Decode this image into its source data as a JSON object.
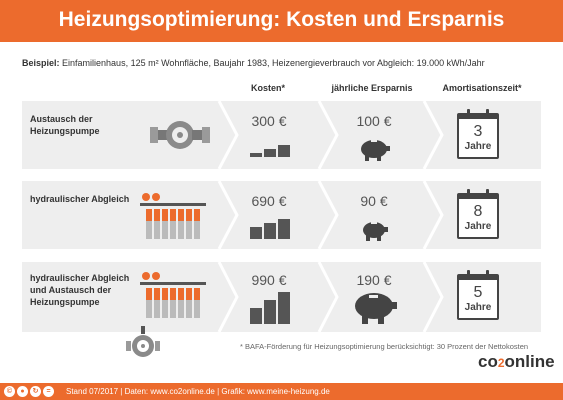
{
  "header": {
    "title": "Heizungsoptimierung: Kosten und Ersparnis"
  },
  "example": {
    "label": "Beispiel:",
    "text": "Einfamilienhaus, 125 m² Wohnfläche, Baujahr 1983, Heizenergieverbrauch vor Abgleich: 19.000 kWh/Jahr"
  },
  "columns": {
    "costs": "Kosten*",
    "savings": "jährliche Ersparnis",
    "payback": "Amortisationszeit*"
  },
  "rows": [
    {
      "label": "Austausch der Heizungspumpe",
      "cost": "300 €",
      "saving": "100 €",
      "payback_num": "3",
      "payback_unit": "Jahre"
    },
    {
      "label": "hydraulischer Abgleich",
      "cost": "690 €",
      "saving": "90 €",
      "payback_num": "8",
      "payback_unit": "Jahre"
    },
    {
      "label": "hydraulischer Abgleich und Austausch der Heizungspumpe",
      "cost": "990 €",
      "saving": "190 €",
      "payback_num": "5",
      "payback_unit": "Jahre"
    }
  ],
  "footnote": "* BAFA-Förderung für Heizungsoptimierung berücksichtigt: 30 Prozent der Nettokosten",
  "footer": {
    "text": "Stand 07/2017   |   Daten: www.co2online.de   |   Grafik: www.meine-heizung.de",
    "license_icons": [
      "cc-icon",
      "by-icon",
      "sa-icon",
      "nd-icon"
    ]
  },
  "brand": {
    "part1": "co",
    "part2": "2",
    "part3": "online"
  },
  "colors": {
    "accent": "#ec6b2d",
    "panel": "#eeeeee",
    "dark": "#444444"
  }
}
